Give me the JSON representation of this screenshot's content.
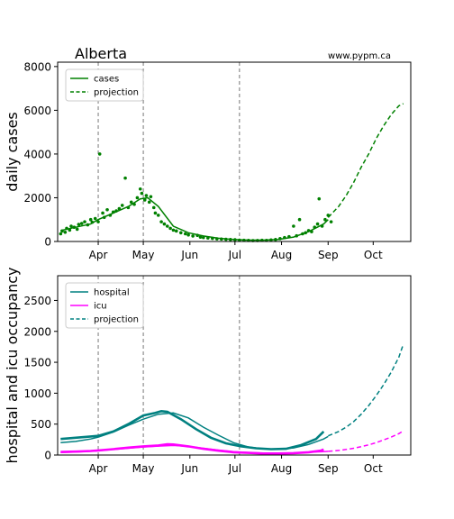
{
  "chart_data": [
    {
      "type": "line",
      "title": "Alberta",
      "source": "www.pypm.ca",
      "ylabel": "daily cases",
      "xlabel": "",
      "ylim": [
        0,
        8200
      ],
      "yticks": [
        0,
        2000,
        4000,
        6000,
        8000
      ],
      "ytick_labels": [
        "0",
        "2000",
        "4000",
        "6000",
        "8000"
      ],
      "xticks": [
        {
          "label": "Apr",
          "day": 0
        },
        {
          "label": "May",
          "day": 30
        },
        {
          "label": "Jun",
          "day": 61
        },
        {
          "label": "Jul",
          "day": 91
        },
        {
          "label": "Aug",
          "day": 122
        },
        {
          "label": "Sep",
          "day": 153
        },
        {
          "label": "Oct",
          "day": 183
        }
      ],
      "xlim_days": [
        -27,
        208
      ],
      "vlines_days": [
        0,
        30,
        94
      ],
      "legend": {
        "position": "top-left",
        "entries": [
          "cases",
          "projection"
        ]
      },
      "colors": {
        "data": "#008000",
        "fit": "#008000",
        "projection": "#008000"
      },
      "series": [
        {
          "name": "cases",
          "style": "solid",
          "x": [
            -25,
            -15,
            -5,
            0,
            10,
            20,
            28,
            33,
            40,
            50,
            60,
            70,
            80,
            90,
            100,
            110,
            120,
            130,
            140,
            150,
            153
          ],
          "y": [
            500,
            650,
            800,
            1000,
            1300,
            1600,
            1950,
            2000,
            1600,
            700,
            400,
            250,
            150,
            90,
            60,
            60,
            90,
            200,
            450,
            800,
            1000
          ]
        },
        {
          "name": "projection",
          "style": "dashed",
          "x": [
            153,
            160,
            165,
            170,
            175,
            180,
            185,
            190,
            195,
            200,
            203
          ],
          "y": [
            1100,
            1600,
            2100,
            2700,
            3400,
            4000,
            4700,
            5300,
            5800,
            6200,
            6300
          ]
        },
        {
          "name": "daily data",
          "style": "points",
          "points": [
            [
              -25,
              350
            ],
            [
              -24,
              480
            ],
            [
              -22,
              420
            ],
            [
              -21,
              600
            ],
            [
              -19,
              520
            ],
            [
              -18,
              700
            ],
            [
              -16,
              650
            ],
            [
              -14,
              560
            ],
            [
              -13,
              780
            ],
            [
              -11,
              820
            ],
            [
              -9,
              900
            ],
            [
              -7,
              760
            ],
            [
              -5,
              1000
            ],
            [
              -4,
              880
            ],
            [
              -2,
              1050
            ],
            [
              0,
              900
            ],
            [
              1,
              4000
            ],
            [
              3,
              1300
            ],
            [
              4,
              1100
            ],
            [
              6,
              1450
            ],
            [
              8,
              1200
            ],
            [
              10,
              1350
            ],
            [
              12,
              1400
            ],
            [
              14,
              1500
            ],
            [
              16,
              1650
            ],
            [
              18,
              2900
            ],
            [
              20,
              1550
            ],
            [
              22,
              1800
            ],
            [
              24,
              1700
            ],
            [
              26,
              2000
            ],
            [
              28,
              2400
            ],
            [
              29,
              2200
            ],
            [
              31,
              1900
            ],
            [
              32,
              2100
            ],
            [
              34,
              1800
            ],
            [
              35,
              2050
            ],
            [
              37,
              1550
            ],
            [
              38,
              1300
            ],
            [
              40,
              1200
            ],
            [
              42,
              900
            ],
            [
              44,
              800
            ],
            [
              46,
              700
            ],
            [
              48,
              600
            ],
            [
              50,
              520
            ],
            [
              52,
              480
            ],
            [
              55,
              400
            ],
            [
              58,
              350
            ],
            [
              60,
              300
            ],
            [
              63,
              250
            ],
            [
              66,
              280
            ],
            [
              68,
              200
            ],
            [
              70,
              180
            ],
            [
              73,
              160
            ],
            [
              76,
              140
            ],
            [
              79,
              120
            ],
            [
              82,
              110
            ],
            [
              85,
              100
            ],
            [
              88,
              90
            ],
            [
              91,
              80
            ],
            [
              94,
              60
            ],
            [
              97,
              55
            ],
            [
              100,
              50
            ],
            [
              103,
              40
            ],
            [
              106,
              45
            ],
            [
              109,
              55
            ],
            [
              112,
              50
            ],
            [
              115,
              70
            ],
            [
              118,
              90
            ],
            [
              121,
              130
            ],
            [
              124,
              180
            ],
            [
              127,
              220
            ],
            [
              130,
              700
            ],
            [
              132,
              260
            ],
            [
              134,
              1000
            ],
            [
              136,
              350
            ],
            [
              138,
              400
            ],
            [
              140,
              500
            ],
            [
              142,
              450
            ],
            [
              144,
              650
            ],
            [
              146,
              800
            ],
            [
              147,
              1950
            ],
            [
              149,
              700
            ],
            [
              151,
              1000
            ],
            [
              153,
              1200
            ],
            [
              155,
              900
            ]
          ]
        }
      ]
    },
    {
      "type": "line",
      "title": "",
      "ylabel": "hospital and icu occupancy",
      "xlabel": "",
      "ylim": [
        0,
        2900
      ],
      "yticks": [
        0,
        500,
        1000,
        1500,
        2000,
        2500
      ],
      "ytick_labels": [
        "0",
        "500",
        "1000",
        "1500",
        "2000",
        "2500"
      ],
      "xticks": [
        {
          "label": "Apr",
          "day": 0
        },
        {
          "label": "May",
          "day": 30
        },
        {
          "label": "Jun",
          "day": 61
        },
        {
          "label": "Jul",
          "day": 91
        },
        {
          "label": "Aug",
          "day": 122
        },
        {
          "label": "Sep",
          "day": 153
        },
        {
          "label": "Oct",
          "day": 183
        }
      ],
      "xlim_days": [
        -27,
        208
      ],
      "vlines_days": [
        0,
        30,
        94
      ],
      "legend": {
        "position": "top-left",
        "entries": [
          "hospital",
          "icu",
          "projection"
        ]
      },
      "colors": {
        "hospital": "#008080",
        "icu": "#ff00ff"
      },
      "series": [
        {
          "name": "hospital",
          "style": "solid",
          "color": "#008080",
          "x": [
            -25,
            -15,
            -5,
            0,
            10,
            20,
            30,
            40,
            50,
            60,
            70,
            80,
            90,
            100,
            110,
            120,
            130,
            140,
            150,
            153
          ],
          "y": [
            200,
            220,
            260,
            290,
            370,
            480,
            580,
            660,
            680,
            600,
            450,
            320,
            200,
            130,
            100,
            95,
            115,
            170,
            260,
            300
          ]
        },
        {
          "name": "hospital data",
          "style": "thick",
          "color": "#008080",
          "x": [
            -25,
            -15,
            -5,
            0,
            10,
            20,
            30,
            38,
            42,
            46,
            55,
            65,
            75,
            85,
            95,
            105,
            115,
            125,
            135,
            145,
            150
          ],
          "y": [
            260,
            280,
            300,
            310,
            380,
            500,
            640,
            680,
            710,
            700,
            580,
            420,
            280,
            190,
            140,
            110,
            95,
            100,
            160,
            260,
            380
          ]
        },
        {
          "name": "projection",
          "style": "dashed",
          "color": "#008080",
          "x": [
            153,
            160,
            165,
            170,
            175,
            180,
            185,
            190,
            195,
            200,
            203
          ],
          "y": [
            310,
            380,
            450,
            540,
            660,
            800,
            960,
            1140,
            1340,
            1580,
            1790
          ]
        },
        {
          "name": "icu",
          "style": "solid",
          "color": "#ff00ff",
          "x": [
            -25,
            -15,
            -5,
            0,
            10,
            20,
            30,
            40,
            50,
            60,
            70,
            80,
            90,
            100,
            110,
            120,
            130,
            140,
            150,
            153
          ],
          "y": [
            40,
            50,
            60,
            70,
            90,
            110,
            130,
            145,
            155,
            140,
            110,
            80,
            55,
            40,
            30,
            30,
            35,
            45,
            55,
            60
          ]
        },
        {
          "name": "icu data",
          "style": "thick",
          "color": "#ff00ff",
          "x": [
            -25,
            -15,
            -5,
            0,
            10,
            20,
            30,
            40,
            46,
            50,
            60,
            70,
            80,
            90,
            100,
            110,
            120,
            130,
            140,
            148,
            150
          ],
          "y": [
            50,
            55,
            65,
            75,
            95,
            120,
            140,
            155,
            175,
            170,
            140,
            100,
            70,
            45,
            35,
            25,
            25,
            30,
            45,
            70,
            90
          ]
        },
        {
          "name": "icu projection",
          "style": "dashed",
          "color": "#ff00ff",
          "x": [
            153,
            160,
            165,
            170,
            175,
            180,
            185,
            190,
            195,
            200,
            203
          ],
          "y": [
            60,
            75,
            90,
            110,
            135,
            165,
            200,
            245,
            290,
            345,
            390
          ]
        }
      ]
    }
  ]
}
